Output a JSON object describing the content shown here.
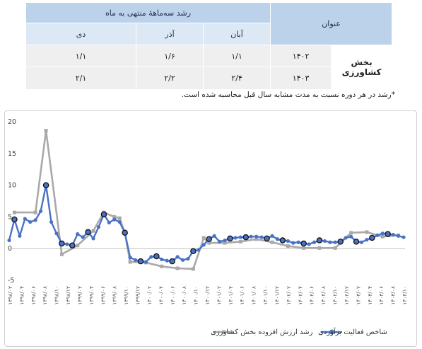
{
  "table": {
    "header_title": "عنوان",
    "header_group": "رشد سه‌ماههٔ منتهی به ماه",
    "months": [
      "آبان",
      "آذر",
      "دی"
    ],
    "sector": "بخش کشاورزی",
    "rows": [
      {
        "year": "۱۴۰۲",
        "values": [
          "۱/۱",
          "۱/۶",
          "۱/۱"
        ]
      },
      {
        "year": "۱۴۰۳",
        "values": [
          "۲/۴",
          "۲/۲",
          "۲/۱"
        ]
      }
    ],
    "footnote": "*رشد در هر دوره نسبت به مدت مشابه سال قبل محاسبه شده است."
  },
  "chart_data": {
    "type": "line",
    "ylim": [
      -5,
      20
    ],
    "yticks": [
      "-5",
      "0",
      "5",
      "10",
      "15",
      "20"
    ],
    "x_labels": [
      "۱۳۹۸/۰۲",
      "۱۳۹۸/۰۴",
      "۱۳۹۸/۰۶",
      "۱۳۹۸/۰۸",
      "۱۳۹۸/۱۰",
      "۱۳۹۸/۱۲",
      "۱۳۹۹/۰۲",
      "۱۳۹۹/۰۴",
      "۱۳۹۹/۰۶",
      "۱۳۹۹/۰۸",
      "۱۳۹۹/۱۰",
      "۱۳۹۹/۱۲",
      "۱۴۰۰/۰۲",
      "۱۴۰۰/۰۴",
      "۱۴۰۰/۰۶",
      "۱۴۰۰/۰۸",
      "۱۴۰۰/۱۰",
      "۱۴۰۰/۱۲",
      "۱۴۰۱/۰۲",
      "۱۴۰۱/۰۴",
      "۱۴۰۱/۰۶",
      "۱۴۰۱/۰۸",
      "۱۴۰۱/۱۰",
      "۱۴۰۱/۱۲",
      "۱۴۰۲/۰۲",
      "۱۴۰۲/۰۴",
      "۱۴۰۲/۰۶",
      "۱۴۰۲/۰۸",
      "۱۴۰۲/۱۰",
      "۱۴۰۲/۱۲",
      "۱۴۰۳/۰۲",
      "۱۴۰۳/۰۴",
      "۱۴۰۳/۰۶",
      "۱۴۰۳/۰۸",
      "۱۴۰۳/۱۰"
    ],
    "series": [
      {
        "name": "شاخص فعالیت برآوردی",
        "color": "#4a72c4",
        "values": [
          1.3,
          4.6,
          2.0,
          4.7,
          4.2,
          4.5,
          5.9,
          10.0,
          4.2,
          2.4,
          0.8,
          0.7,
          0.5,
          2.3,
          1.8,
          2.6,
          1.6,
          3.4,
          5.4,
          4.1,
          4.6,
          4.2,
          2.5,
          -1.4,
          -1.8,
          -2.0,
          -2.1,
          -1.3,
          -1.2,
          -1.7,
          -1.9,
          -2.0,
          -1.3,
          -1.8,
          -1.6,
          -0.4,
          -0.2,
          0.6,
          1.5,
          2.0,
          1.1,
          1.3,
          1.6,
          1.7,
          1.8,
          1.8,
          1.9,
          1.9,
          1.8,
          1.6,
          2.0,
          1.5,
          1.3,
          1.2,
          0.9,
          1.0,
          0.8,
          0.7,
          1.0,
          1.3,
          1.2,
          1.0,
          1.0,
          1.1,
          1.7,
          1.9,
          1.1,
          1.0,
          1.4,
          1.7,
          2.1,
          2.4,
          2.3,
          2.2,
          2.0,
          1.8
        ],
        "highlighted_points": [
          1,
          7,
          10,
          12,
          15,
          18,
          22,
          25,
          28,
          31,
          35,
          38,
          42,
          45,
          49,
          52,
          56,
          59,
          63,
          66,
          69,
          72
        ]
      },
      {
        "name": "رشد ارزش افزوده بخش کشاورزی",
        "color": "#a9a9a9",
        "values": [
          null,
          5.7,
          null,
          null,
          null,
          5.7,
          null,
          18.6,
          null,
          null,
          -0.9,
          null,
          null,
          0.5,
          null,
          null,
          2.8,
          null,
          5.7,
          null,
          5.0,
          4.8,
          2.4,
          -2.1,
          null,
          null,
          -2.2,
          null,
          null,
          -2.8,
          null,
          null,
          -3.1,
          null,
          null,
          -3.2,
          null,
          1.7,
          0.9,
          null,
          null,
          0.9,
          null,
          null,
          1.1,
          null,
          null,
          1.5,
          null,
          null,
          1.0,
          null,
          null,
          0.4,
          null,
          null,
          0.1,
          null,
          null,
          0.1,
          null,
          null,
          0.1,
          null,
          null,
          2.5,
          null,
          null,
          2.6,
          null,
          null,
          1.9,
          null,
          null,
          2.1,
          null
        ]
      }
    ],
    "legend_position": "bottom"
  }
}
